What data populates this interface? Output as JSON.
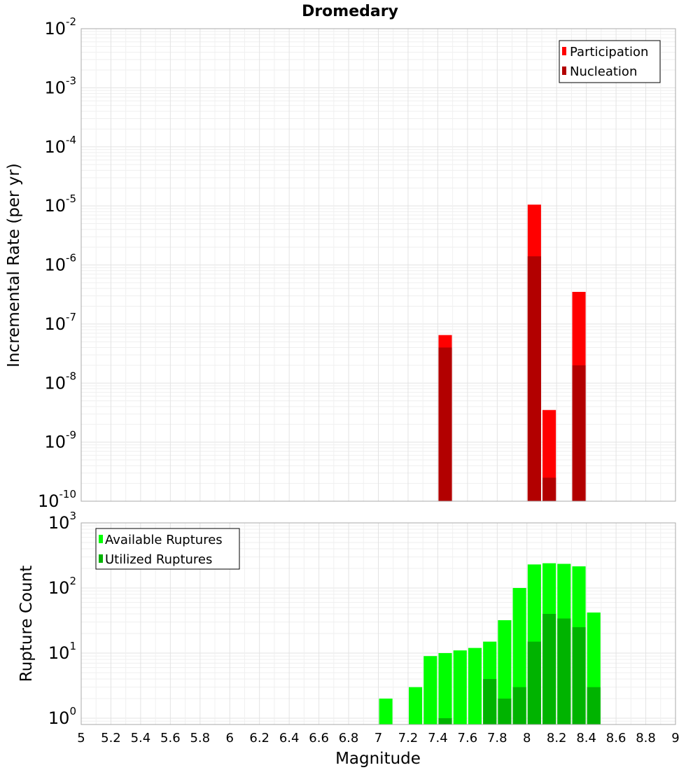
{
  "title": "Dromedary",
  "xlabel": "Magnitude",
  "x_tick_labels": [
    "5",
    "5.2",
    "5.4",
    "5.6",
    "5.8",
    "6",
    "6.2",
    "6.4",
    "6.6",
    "6.8",
    "7",
    "7.2",
    "7.4",
    "7.6",
    "7.8",
    "8",
    "8.2",
    "8.4",
    "8.6",
    "8.8",
    "9"
  ],
  "chart_data": [
    {
      "type": "bar",
      "ylabel": "Incremental Rate (per yr)",
      "xlim": [
        5,
        9
      ],
      "ylim": [
        1e-10,
        0.01
      ],
      "yscale": "log",
      "y_tick_exponents": [
        "-10",
        "-9",
        "-8",
        "-7",
        "-6",
        "-5",
        "-4",
        "-3",
        "-2"
      ],
      "grid": true,
      "legend_position": "top-right",
      "series": [
        {
          "name": "Participation",
          "color": "#ff0000",
          "x": [
            7.45,
            8.05,
            8.15,
            8.35
          ],
          "values": [
            6.5e-08,
            1.05e-05,
            3.5e-09,
            3.5e-07
          ]
        },
        {
          "name": "Nucleation",
          "color": "#b20000",
          "x": [
            7.45,
            8.05,
            8.15,
            8.35
          ],
          "values": [
            4e-08,
            1.4e-06,
            2.5e-10,
            2e-08
          ]
        }
      ]
    },
    {
      "type": "bar",
      "ylabel": "Rupture Count",
      "xlim": [
        5,
        9
      ],
      "ylim": [
        0.8,
        1000
      ],
      "yscale": "log",
      "y_tick_exponents": [
        "0",
        "1",
        "2",
        "3"
      ],
      "grid": true,
      "legend_position": "top-left",
      "series": [
        {
          "name": "Available Ruptures",
          "color": "#00ff00",
          "x": [
            7.05,
            7.25,
            7.35,
            7.45,
            7.55,
            7.65,
            7.75,
            7.85,
            7.95,
            8.05,
            8.15,
            8.25,
            8.35,
            8.45
          ],
          "values": [
            2,
            3,
            9,
            10,
            11,
            12,
            15,
            32,
            100,
            230,
            240,
            235,
            215,
            42
          ]
        },
        {
          "name": "Utilized Ruptures",
          "color": "#00b300",
          "x": [
            7.45,
            7.75,
            7.85,
            7.95,
            8.05,
            8.15,
            8.25,
            8.35,
            8.45
          ],
          "values": [
            1,
            4,
            2,
            3,
            15,
            40,
            34,
            25,
            3
          ]
        }
      ]
    }
  ]
}
